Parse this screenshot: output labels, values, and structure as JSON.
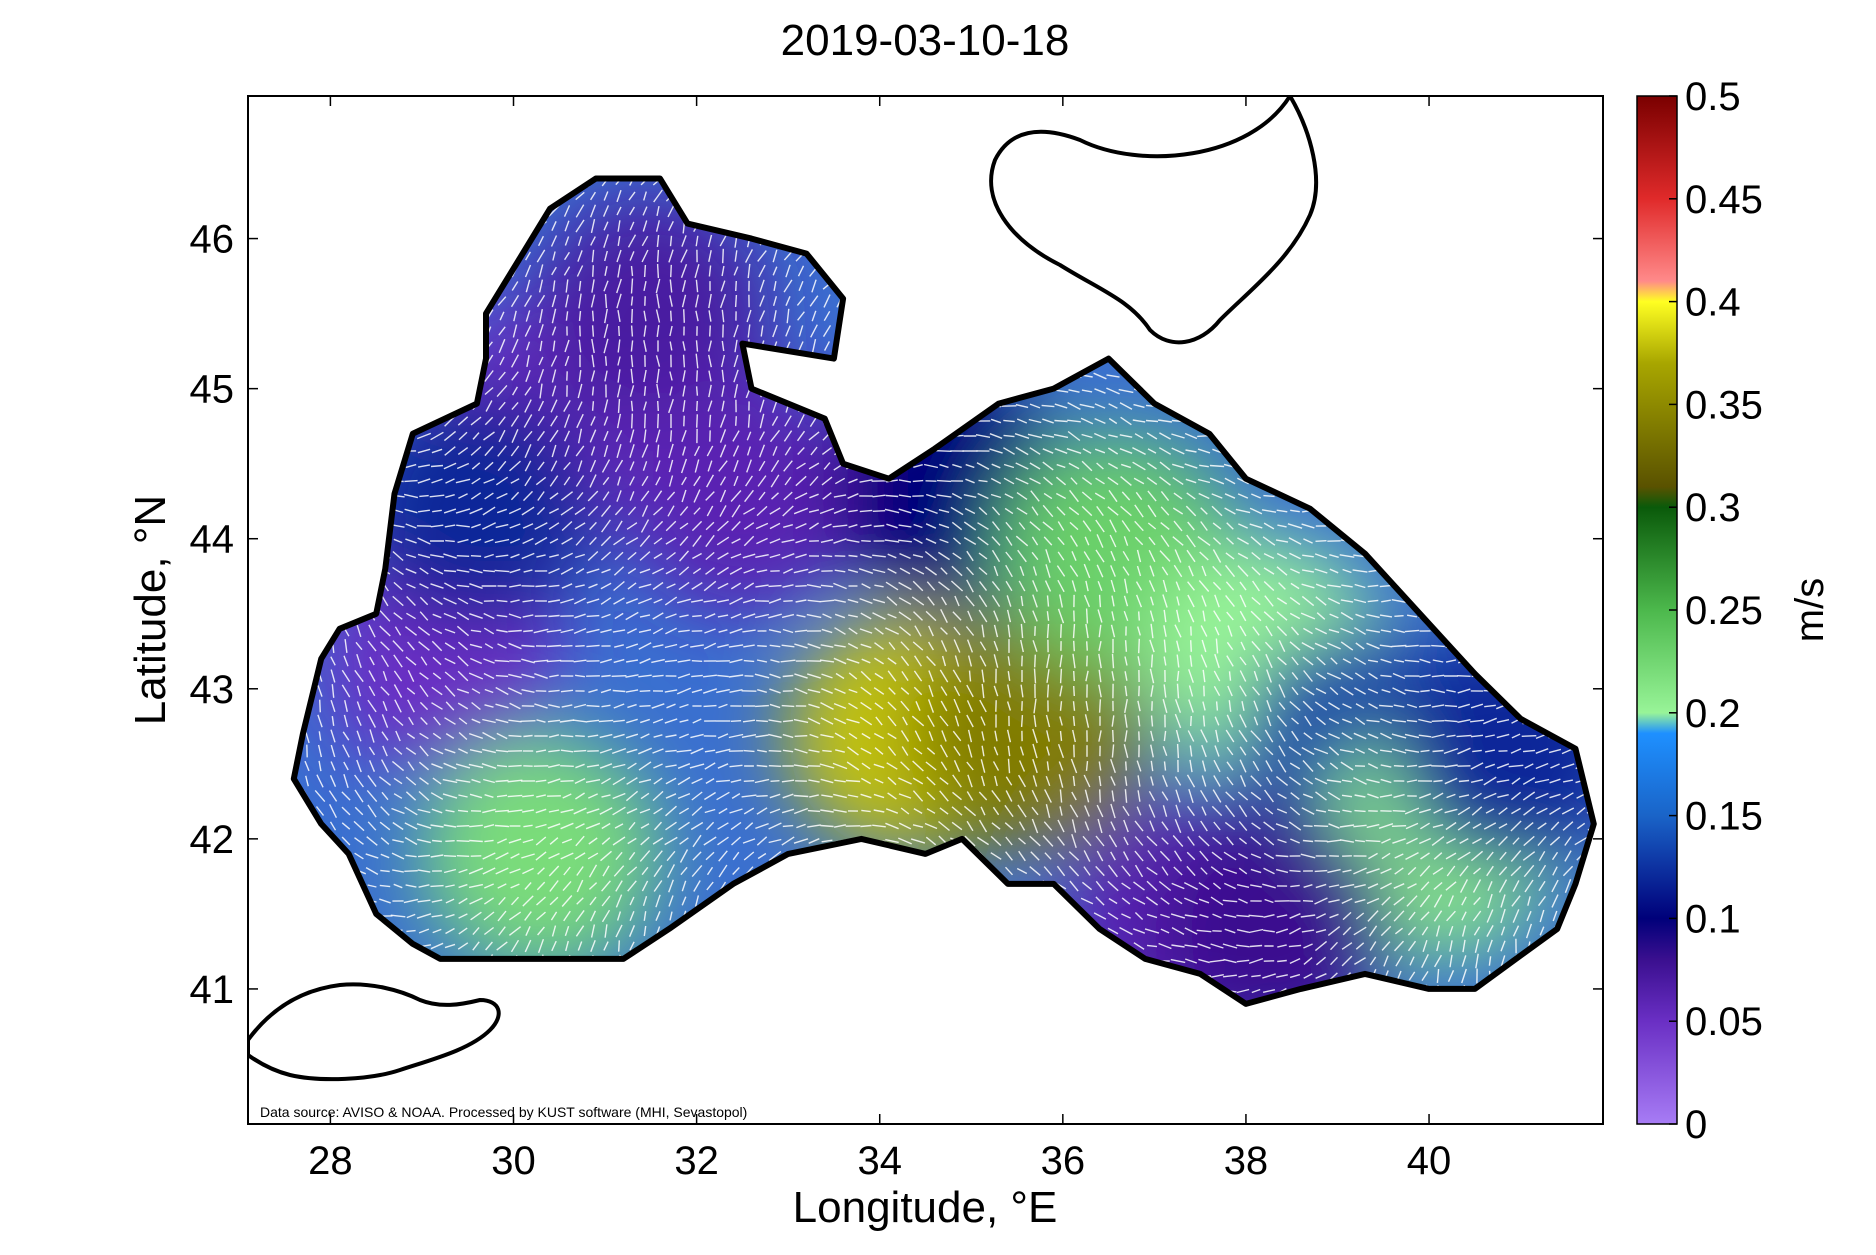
{
  "figure": {
    "title": "2019-03-10-18",
    "xlabel": "Longitude, °E",
    "ylabel": "Latitude, °N",
    "credit": "Data source: AVISO & NOAA. Processed by KUST software (MHI, Sevastopol)",
    "colorbar_label": "m/s"
  },
  "chart_data": {
    "type": "heatmap",
    "title": "2019-03-10-18",
    "xlabel": "Longitude, °E",
    "ylabel": "Latitude, °N",
    "xlim": [
      27.1,
      41.9
    ],
    "ylim": [
      40.1,
      46.95
    ],
    "x_ticks": [
      "28",
      "30",
      "32",
      "34",
      "36",
      "38",
      "40"
    ],
    "y_ticks": [
      "41",
      "42",
      "43",
      "44",
      "45",
      "46"
    ],
    "colorbar": {
      "label": "m/s",
      "range": [
        0,
        0.5
      ],
      "ticks": [
        "0",
        "0.05",
        "0.1",
        "0.15",
        "0.2",
        "0.25",
        "0.3",
        "0.35",
        "0.4",
        "0.45",
        "0.5"
      ]
    },
    "overlay": "white current-velocity vectors",
    "regions": [
      {
        "lon": 30.3,
        "lat": 44.8,
        "speed": 0.05
      },
      {
        "lon": 31.5,
        "lat": 45.5,
        "speed": 0.07
      },
      {
        "lon": 32.5,
        "lat": 44.3,
        "speed": 0.06
      },
      {
        "lon": 29.2,
        "lat": 43.2,
        "speed": 0.05
      },
      {
        "lon": 29.6,
        "lat": 44.2,
        "speed": 0.12
      },
      {
        "lon": 34.8,
        "lat": 44.3,
        "speed": 0.1
      },
      {
        "lon": 34.3,
        "lat": 42.7,
        "speed": 0.38
      },
      {
        "lon": 35.6,
        "lat": 42.7,
        "speed": 0.34
      },
      {
        "lon": 30.3,
        "lat": 41.9,
        "speed": 0.22
      },
      {
        "lon": 36.6,
        "lat": 43.9,
        "speed": 0.23
      },
      {
        "lon": 38.2,
        "lat": 43.2,
        "speed": 0.2
      },
      {
        "lon": 39.2,
        "lat": 42.6,
        "speed": 0.13
      },
      {
        "lon": 40.1,
        "lat": 42.0,
        "speed": 0.21
      },
      {
        "lon": 37.3,
        "lat": 41.5,
        "speed": 0.06
      },
      {
        "lon": 38.3,
        "lat": 41.4,
        "speed": 0.08
      },
      {
        "lon": 40.9,
        "lat": 42.6,
        "speed": 0.12
      }
    ]
  }
}
